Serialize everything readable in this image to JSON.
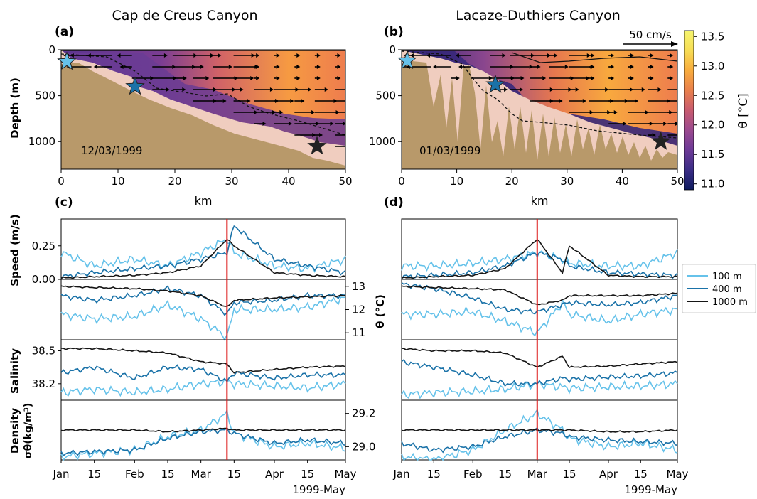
{
  "panels": {
    "a": {
      "letter": "(a)",
      "title": "Cap de Creus Canyon",
      "date": "12/03/1999"
    },
    "b": {
      "letter": "(b)",
      "title": "Lacaze-Duthiers Canyon",
      "date": "01/03/1999"
    },
    "c": {
      "letter": "(c)"
    },
    "d": {
      "letter": "(d)"
    }
  },
  "section_axes": {
    "xlabel": "km",
    "ylabel": "Depth (m)",
    "xticks": [
      "0",
      "10",
      "20",
      "30",
      "40",
      "50"
    ],
    "yticks": [
      "0",
      "500",
      "1000"
    ],
    "xlim": [
      0,
      50
    ],
    "ylim": [
      1300,
      0
    ]
  },
  "colorbar": {
    "label": "θ [°C]",
    "ticks": [
      "11.0",
      "11.5",
      "12.0",
      "12.5",
      "13.0",
      "13.5"
    ],
    "range": [
      10.9,
      13.6
    ],
    "colors": [
      "#0d1a5e",
      "#3b2d86",
      "#6d3a97",
      "#9b4a8f",
      "#c85b6f",
      "#e9804c",
      "#f8ac3d",
      "#f7dd55",
      "#f5f56f"
    ]
  },
  "quiver_key": {
    "label": "50 cm/s"
  },
  "colors": {
    "terrain": "#b8996a",
    "clay": "#f0cdbf",
    "water_cold": "#6a3d92",
    "water_warm": "#f08f4a",
    "s100": "#66c2ea",
    "s400": "#1a72a8",
    "s1000": "#151515",
    "event": "#dd1c1c"
  },
  "timeseries": {
    "ylabels": [
      "Speed (m/s)",
      "θ (°C)",
      "Salinity",
      "σθ(kg/m³)",
      "Density"
    ],
    "speed_ticks": [
      "0.25",
      "0.00"
    ],
    "temp_ticks": [
      "13",
      "12",
      "11"
    ],
    "sal_ticks": [
      "38.5",
      "38.2"
    ],
    "dens_ticks": [
      "29.2",
      "29.0"
    ],
    "xticks": [
      "Jan",
      "15",
      "Feb",
      "15",
      "Mar",
      "15",
      "Apr",
      "15",
      "May"
    ],
    "xsuffix": "1999-May",
    "legend": [
      "100 m",
      "400 m",
      "1000 m"
    ]
  },
  "chart_data": [
    {
      "type": "heatmap",
      "panel": "a",
      "title": "Cap de Creus Canyon",
      "xlabel": "km",
      "ylabel": "Depth (m)",
      "xlim": [
        0,
        50
      ],
      "ylim": [
        1300,
        0
      ],
      "mooring_depths_m": [
        130,
        400,
        1050
      ],
      "mooring_km": [
        1,
        13,
        45
      ]
    },
    {
      "type": "heatmap",
      "panel": "b",
      "title": "Lacaze-Duthiers Canyon",
      "xlabel": "km",
      "ylabel": "Depth (m)",
      "xlim": [
        0,
        50
      ],
      "ylim": [
        1300,
        0
      ],
      "mooring_depths_m": [
        120,
        380,
        1000
      ],
      "mooring_km": [
        1,
        17,
        47
      ]
    },
    {
      "type": "line",
      "panel": "c",
      "event_date": "1999-03-12",
      "x": [
        "Jan 1",
        "Jan 15",
        "Feb 1",
        "Feb 15",
        "Mar 1",
        "Mar 12",
        "Mar 15",
        "Apr 1",
        "Apr 15",
        "May 1"
      ],
      "series": [
        {
          "name": "100 m",
          "speed": [
            0.2,
            0.1,
            0.15,
            0.1,
            0.2,
            0.3,
            0.2,
            0.1,
            0.08,
            0.15
          ],
          "theta": [
            11.8,
            11.6,
            11.7,
            12.2,
            11.6,
            10.8,
            12.0,
            12.0,
            12.1,
            12.5
          ],
          "salinity": [
            38.12,
            38.15,
            38.12,
            38.15,
            38.2,
            38.22,
            38.2,
            38.18,
            38.16,
            38.2
          ],
          "sigma": [
            28.94,
            28.96,
            28.98,
            29.06,
            29.1,
            29.2,
            29.08,
            29.0,
            29.02,
            28.99
          ]
        },
        {
          "name": "400 m",
          "speed": [
            0.02,
            0.05,
            0.08,
            0.1,
            0.15,
            0.2,
            0.4,
            0.15,
            0.1,
            0.05
          ],
          "theta": [
            12.6,
            12.4,
            12.6,
            12.9,
            12.6,
            11.8,
            12.3,
            12.4,
            12.6,
            12.6
          ],
          "salinity": [
            38.3,
            38.35,
            38.25,
            38.35,
            38.33,
            38.22,
            38.3,
            38.25,
            38.28,
            38.28
          ],
          "sigma": [
            28.96,
            28.97,
            28.98,
            29.05,
            29.09,
            29.1,
            29.08,
            29.02,
            29.04,
            29.02
          ]
        },
        {
          "name": "1000 m",
          "speed": [
            0.01,
            0.02,
            0.03,
            0.05,
            0.1,
            0.3,
            0.25,
            0.05,
            0.03,
            0.02
          ],
          "theta": [
            13.0,
            12.95,
            12.9,
            12.8,
            12.6,
            12.1,
            12.4,
            12.5,
            12.55,
            12.6
          ],
          "salinity": [
            38.52,
            38.52,
            38.5,
            38.48,
            38.4,
            38.38,
            38.3,
            38.33,
            38.35,
            38.36
          ],
          "sigma": [
            29.1,
            29.1,
            29.1,
            29.09,
            29.1,
            29.11,
            29.1,
            29.1,
            29.1,
            29.1
          ]
        }
      ]
    },
    {
      "type": "line",
      "panel": "d",
      "event_date": "1999-03-01",
      "x": [
        "Jan 1",
        "Jan 15",
        "Feb 1",
        "Feb 15",
        "Mar 1",
        "Mar 12",
        "Mar 15",
        "Apr 1",
        "Apr 15",
        "May 1"
      ],
      "series": [
        {
          "name": "100 m",
          "speed": [
            0.1,
            0.1,
            0.12,
            0.15,
            0.2,
            0.15,
            0.12,
            0.1,
            0.1,
            0.2
          ],
          "theta": [
            11.8,
            11.8,
            11.9,
            11.5,
            11.0,
            12.3,
            11.8,
            11.5,
            11.8,
            12.0
          ],
          "salinity": [
            38.1,
            38.12,
            38.13,
            38.15,
            38.2,
            38.17,
            38.16,
            38.17,
            38.18,
            38.2
          ],
          "sigma": [
            28.94,
            28.92,
            28.98,
            29.1,
            29.2,
            29.1,
            29.05,
            29.0,
            29.02,
            28.98
          ]
        },
        {
          "name": "400 m",
          "speed": [
            0.02,
            0.03,
            0.05,
            0.1,
            0.2,
            0.15,
            0.1,
            0.05,
            0.04,
            0.03
          ],
          "theta": [
            13.1,
            12.9,
            12.5,
            12.0,
            11.9,
            12.2,
            12.3,
            12.2,
            12.3,
            12.6
          ],
          "salinity": [
            38.4,
            38.35,
            38.28,
            38.2,
            38.2,
            38.25,
            38.24,
            38.26,
            38.27,
            38.3
          ],
          "sigma": [
            29.02,
            28.98,
            29.0,
            29.06,
            29.1,
            29.08,
            29.06,
            29.04,
            29.03,
            29.02
          ]
        },
        {
          "name": "1000 m",
          "speed": [
            0.01,
            0.02,
            0.03,
            0.08,
            0.3,
            0.05,
            0.25,
            0.03,
            0.02,
            0.02
          ],
          "theta": [
            13.0,
            12.95,
            12.9,
            12.85,
            12.2,
            12.4,
            12.6,
            12.6,
            12.6,
            12.7
          ],
          "salinity": [
            38.52,
            38.5,
            38.5,
            38.48,
            38.35,
            38.45,
            38.35,
            38.36,
            38.38,
            38.4
          ],
          "sigma": [
            29.1,
            29.1,
            29.1,
            29.1,
            29.1,
            29.1,
            29.1,
            29.09,
            29.09,
            29.1
          ]
        }
      ]
    }
  ]
}
